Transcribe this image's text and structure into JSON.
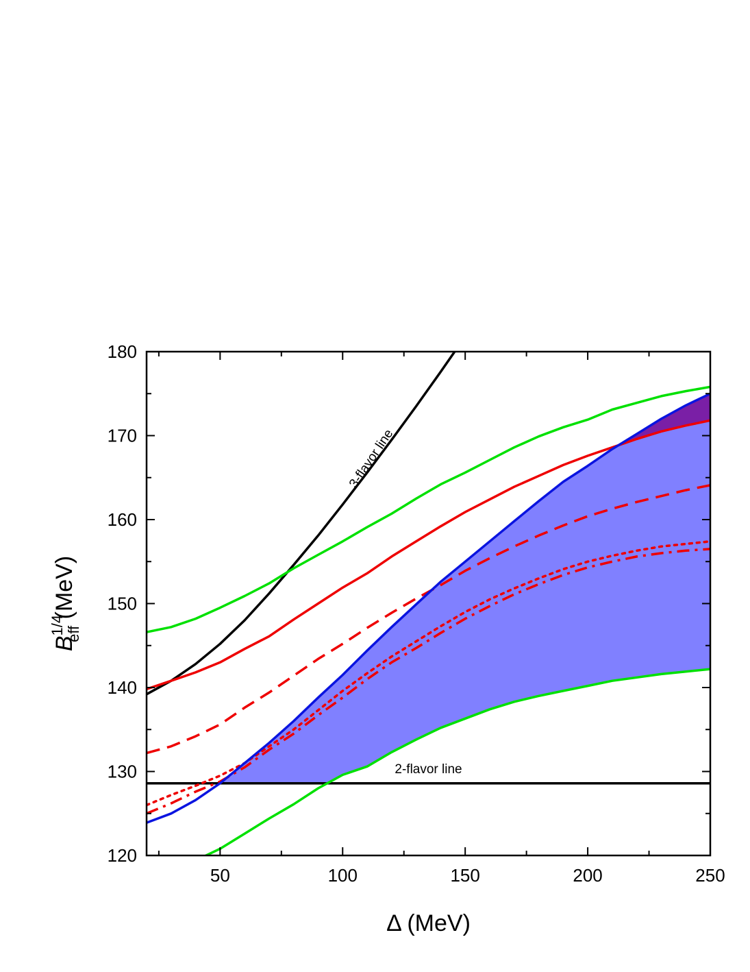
{
  "chart_data": {
    "type": "line",
    "title": "",
    "xlabel": "Δ (MeV)",
    "ylabel": {
      "base": "B",
      "superscript": "1/4",
      "subscript": "eff",
      "unit": " (MeV)"
    },
    "xlim": [
      20,
      250
    ],
    "ylim": [
      120,
      180
    ],
    "x_ticks": [
      50,
      100,
      150,
      200,
      250
    ],
    "y_ticks": [
      120,
      130,
      140,
      150,
      160,
      170,
      180
    ],
    "x_minor_step": 25,
    "y_minor_step": 5,
    "grid": false,
    "legend": "none",
    "annotations": [
      {
        "text": "3-flavor line",
        "x": 113,
        "y": 167,
        "angle_deg": -56
      },
      {
        "text": "2-flavor line",
        "x": 135,
        "y": 129.8,
        "angle_deg": 0
      }
    ],
    "series": [
      {
        "role": "three-flavor",
        "color": "#000000",
        "style": "solid",
        "x": [
          20,
          30,
          40,
          50,
          60,
          70,
          80,
          90,
          100,
          110,
          120,
          130,
          140,
          150
        ],
        "y": [
          139.2,
          140.8,
          142.8,
          145.2,
          148.0,
          151.2,
          154.6,
          158.1,
          161.8,
          165.6,
          169.5,
          173.5,
          177.6,
          181.8
        ]
      },
      {
        "role": "two-flavor",
        "color": "#000000",
        "style": "solid",
        "x": [
          20,
          250
        ],
        "y": [
          128.6,
          128.6
        ]
      },
      {
        "role": "green-upper",
        "color": "#00e000",
        "style": "solid",
        "x": [
          20,
          30,
          40,
          50,
          60,
          70,
          80,
          90,
          100,
          110,
          120,
          130,
          140,
          150,
          160,
          170,
          180,
          190,
          200,
          210,
          220,
          230,
          240,
          250
        ],
        "y": [
          146.6,
          147.2,
          148.2,
          149.5,
          150.9,
          152.4,
          154.2,
          155.8,
          157.4,
          159.1,
          160.7,
          162.5,
          164.2,
          165.6,
          167.1,
          168.6,
          169.9,
          171.0,
          171.9,
          173.1,
          173.9,
          174.7,
          175.3,
          175.8
        ]
      },
      {
        "role": "green-lower",
        "color": "#00e000",
        "style": "solid",
        "x": [
          40,
          50,
          60,
          70,
          80,
          90,
          100,
          110,
          120,
          130,
          140,
          150,
          160,
          170,
          180,
          190,
          200,
          210,
          220,
          230,
          240,
          250
        ],
        "y": [
          119.4,
          120.8,
          122.6,
          124.4,
          126.1,
          128.0,
          129.6,
          130.6,
          132.3,
          133.8,
          135.2,
          136.3,
          137.4,
          138.3,
          139.0,
          139.6,
          140.2,
          140.8,
          141.2,
          141.6,
          141.9,
          142.2
        ]
      },
      {
        "role": "red-solid",
        "color": "#ee0000",
        "style": "solid",
        "x": [
          20,
          30,
          40,
          50,
          60,
          70,
          80,
          90,
          100,
          110,
          120,
          130,
          140,
          150,
          160,
          170,
          180,
          190,
          200,
          210,
          220,
          230,
          240,
          250
        ],
        "y": [
          139.8,
          140.8,
          141.8,
          143.0,
          144.6,
          146.1,
          148.1,
          150.0,
          151.9,
          153.6,
          155.6,
          157.4,
          159.2,
          160.9,
          162.4,
          163.9,
          165.2,
          166.5,
          167.6,
          168.6,
          169.6,
          170.5,
          171.2,
          171.8
        ]
      },
      {
        "role": "red-dashed",
        "color": "#ee0000",
        "style": "dashed",
        "x": [
          20,
          30,
          40,
          50,
          60,
          70,
          80,
          90,
          100,
          110,
          120,
          130,
          140,
          150,
          160,
          170,
          180,
          190,
          200,
          210,
          220,
          230,
          240,
          250
        ],
        "y": [
          132.2,
          133.0,
          134.2,
          135.6,
          137.6,
          139.4,
          141.4,
          143.4,
          145.2,
          147.1,
          148.9,
          150.6,
          152.2,
          153.9,
          155.4,
          156.8,
          158.1,
          159.3,
          160.4,
          161.3,
          162.1,
          162.8,
          163.5,
          164.1
        ]
      },
      {
        "role": "red-dotted",
        "color": "#ee0000",
        "style": "dotted",
        "x": [
          20,
          30,
          40,
          50,
          60,
          70,
          80,
          90,
          100,
          110,
          120,
          130,
          140,
          150,
          160,
          170,
          180,
          190,
          200,
          210,
          220,
          230,
          240,
          250
        ],
        "y": [
          126.0,
          127.2,
          128.3,
          129.5,
          131.0,
          133.0,
          135.0,
          137.3,
          139.6,
          141.7,
          143.7,
          145.5,
          147.3,
          149.0,
          150.5,
          151.8,
          153.0,
          154.1,
          155.0,
          155.7,
          156.3,
          156.8,
          157.1,
          157.4
        ]
      },
      {
        "role": "red-dashdot",
        "color": "#ee0000",
        "style": "dashdot",
        "x": [
          20,
          30,
          40,
          50,
          60,
          70,
          80,
          90,
          100,
          110,
          120,
          130,
          140,
          150,
          160,
          170,
          180,
          190,
          200,
          210,
          220,
          230,
          240,
          250
        ],
        "y": [
          125.0,
          126.2,
          127.6,
          128.8,
          130.5,
          132.6,
          134.5,
          136.7,
          138.8,
          141.0,
          143.0,
          144.7,
          146.5,
          148.2,
          149.7,
          151.1,
          152.3,
          153.4,
          154.3,
          155.0,
          155.6,
          156.0,
          156.3,
          156.5
        ]
      },
      {
        "role": "blue",
        "color": "#0a14e0",
        "style": "solid",
        "x": [
          20,
          30,
          40,
          50,
          60,
          70,
          80,
          90,
          100,
          110,
          120,
          130,
          140,
          150,
          160,
          170,
          180,
          190,
          200,
          210,
          220,
          230,
          240,
          250
        ],
        "y": [
          123.9,
          125.0,
          126.6,
          128.6,
          131.0,
          133.4,
          136.0,
          138.8,
          141.5,
          144.4,
          147.2,
          149.9,
          152.6,
          155.0,
          157.4,
          159.8,
          162.2,
          164.5,
          166.4,
          168.4,
          170.2,
          172.0,
          173.6,
          175.0
        ]
      }
    ],
    "shaded_regions": [
      {
        "role": "allowed-region",
        "color": "#8080ff",
        "upper": "blue",
        "lower": [
          "two-flavor",
          "green-lower"
        ],
        "x_from": 50.5,
        "x_to": 250
      },
      {
        "role": "overlap-region",
        "color": "#7a1fa6",
        "upper": "blue",
        "lower": [
          "red-solid"
        ],
        "x_from": 212,
        "x_to": 250
      }
    ]
  }
}
